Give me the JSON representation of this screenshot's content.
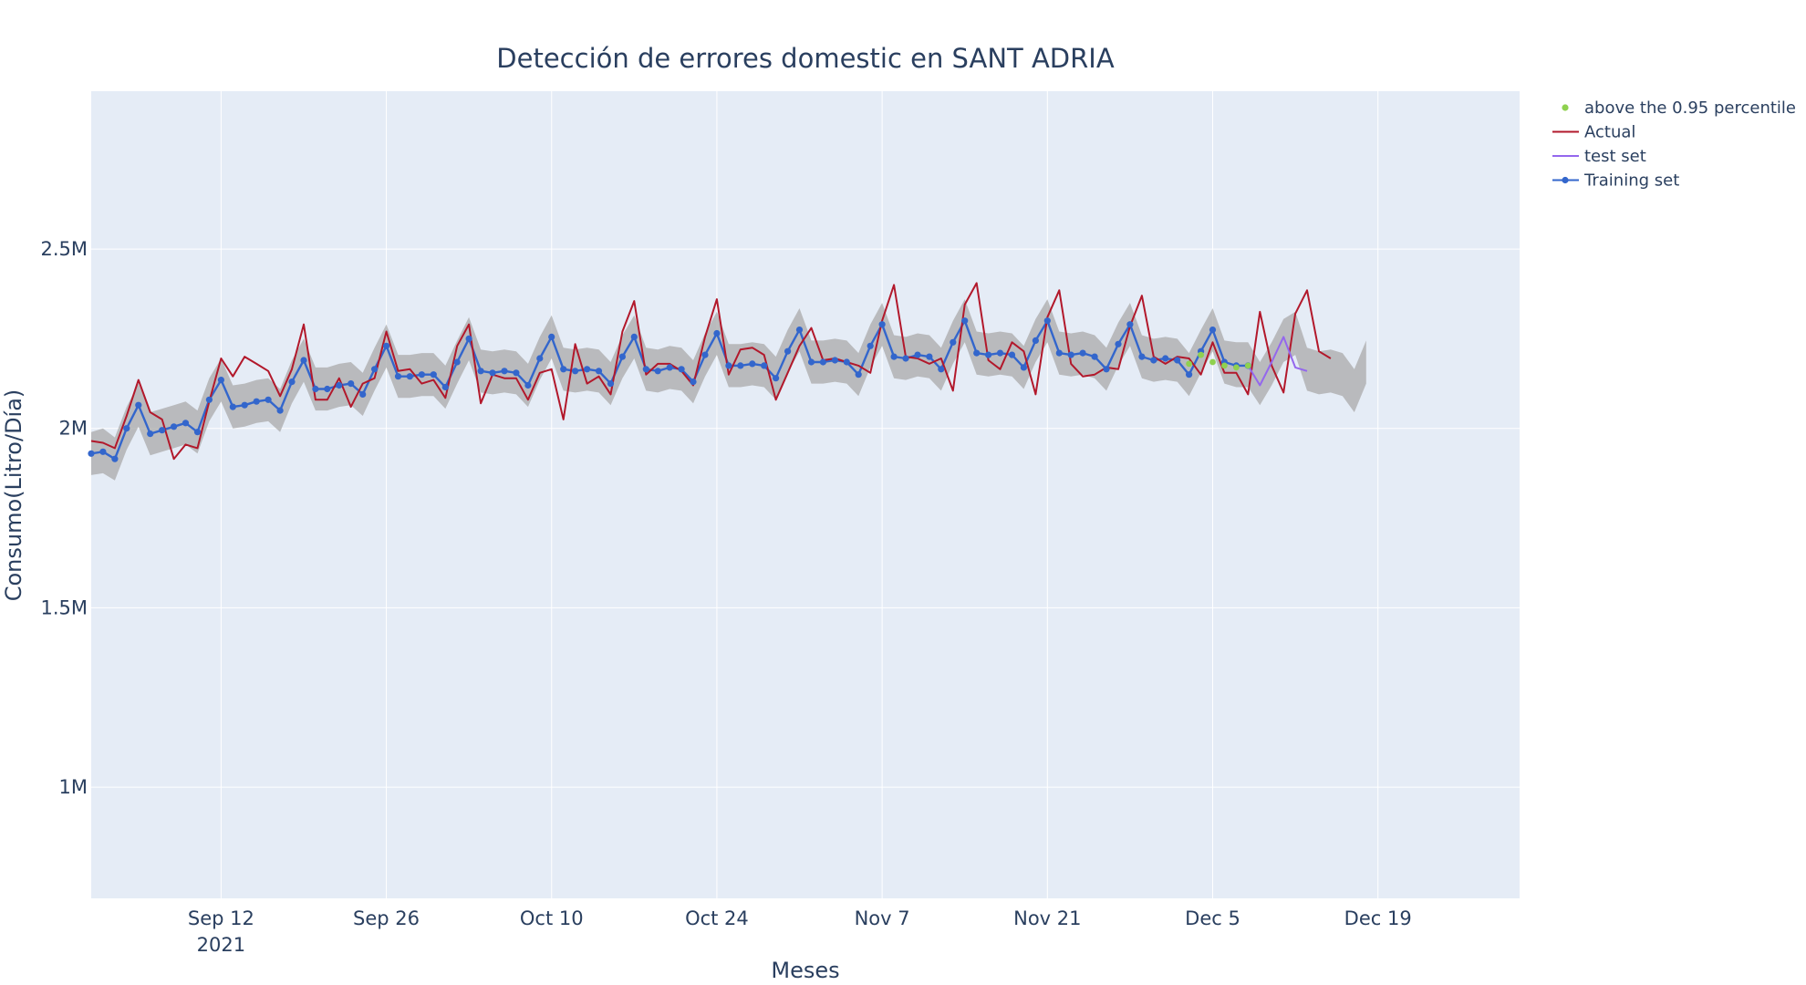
{
  "chart_data": {
    "type": "line",
    "title": "Detección de errores domestic en SANT ADRIA",
    "xlabel": "Meses",
    "ylabel": "Consumo(Litro/Día)",
    "x_start": "2021-09-01",
    "x_ticks": [
      {
        "label": "Sep 12",
        "sublabel": "2021"
      },
      {
        "label": "Sep 26",
        "sublabel": ""
      },
      {
        "label": "Oct 10",
        "sublabel": ""
      },
      {
        "label": "Oct 24",
        "sublabel": ""
      },
      {
        "label": "Nov 7",
        "sublabel": ""
      },
      {
        "label": "Nov 21",
        "sublabel": ""
      },
      {
        "label": "Dec 5",
        "sublabel": ""
      },
      {
        "label": "Dec 19",
        "sublabel": ""
      }
    ],
    "x_tick_dates": [
      "2021-09-12",
      "2021-09-26",
      "2021-10-10",
      "2021-10-24",
      "2021-11-07",
      "2021-11-21",
      "2021-12-05",
      "2021-12-19"
    ],
    "xlim": [
      "2021-09-01",
      "2021-12-31"
    ],
    "y_ticks": [
      {
        "value": 1000000,
        "label": "1M"
      },
      {
        "value": 1500000,
        "label": "1.5M"
      },
      {
        "value": 2000000,
        "label": "2M"
      },
      {
        "value": 2500000,
        "label": "2.5M"
      }
    ],
    "ylim": [
      690000,
      2940000
    ],
    "grid": true,
    "legend_position": "top-right",
    "colors": {
      "plot_bg": "#e5ecf6",
      "grid": "#ffffff",
      "band": "#a9a9a9",
      "actual": "#b2182b",
      "test": "#9467ed",
      "training": "#3366cc",
      "anomaly": "#8fd14f",
      "text": "#2a3f5f"
    },
    "legend": [
      {
        "name": "above the 0.95 percentile",
        "kind": "marker",
        "color_key": "anomaly"
      },
      {
        "name": "Actual",
        "kind": "line",
        "color_key": "actual"
      },
      {
        "name": "test set",
        "kind": "line",
        "color_key": "test"
      },
      {
        "name": "Training set",
        "kind": "line-marker",
        "color_key": "training"
      }
    ],
    "series": [
      {
        "name": "Actual",
        "start": "2021-09-01",
        "values": [
          1965000,
          1960000,
          1945000,
          2035000,
          2135000,
          2045000,
          2025000,
          1915000,
          1955000,
          1945000,
          2075000,
          2195000,
          2145000,
          2200000,
          2180000,
          2160000,
          2090000,
          2165000,
          2290000,
          2080000,
          2080000,
          2140000,
          2060000,
          2125000,
          2140000,
          2270000,
          2160000,
          2165000,
          2125000,
          2135000,
          2085000,
          2230000,
          2290000,
          2070000,
          2150000,
          2140000,
          2140000,
          2080000,
          2155000,
          2165000,
          2025000,
          2235000,
          2125000,
          2145000,
          2095000,
          2270000,
          2355000,
          2150000,
          2180000,
          2180000,
          2160000,
          2120000,
          2255000,
          2360000,
          2150000,
          2220000,
          2225000,
          2205000,
          2080000,
          2155000,
          2230000,
          2280000,
          2190000,
          2195000,
          2185000,
          2175000,
          2155000,
          2300000,
          2400000,
          2200000,
          2195000,
          2180000,
          2195000,
          2105000,
          2345000,
          2405000,
          2190000,
          2165000,
          2240000,
          2215000,
          2095000,
          2310000,
          2385000,
          2180000,
          2145000,
          2150000,
          2170000,
          2165000,
          2285000,
          2370000,
          2200000,
          2180000,
          2200000,
          2195000,
          2150000,
          2240000,
          2155000,
          2155000,
          2095000,
          2325000,
          2175000,
          2100000,
          2320000,
          2385000,
          2215000,
          2195000
        ]
      },
      {
        "name": "test set",
        "start": "2021-12-08",
        "values": [
          2175000,
          2120000,
          2185000,
          2255000,
          2170000,
          2160000
        ]
      },
      {
        "name": "Training set",
        "start": "2021-09-01",
        "values": [
          1930000,
          1935000,
          1915000,
          2000000,
          2065000,
          1985000,
          1995000,
          2005000,
          2015000,
          1990000,
          2080000,
          2135000,
          2060000,
          2065000,
          2075000,
          2080000,
          2050000,
          2130000,
          2190000,
          2110000,
          2110000,
          2120000,
          2125000,
          2095000,
          2165000,
          2230000,
          2145000,
          2145000,
          2150000,
          2150000,
          2115000,
          2185000,
          2250000,
          2160000,
          2155000,
          2160000,
          2155000,
          2120000,
          2195000,
          2255000,
          2165000,
          2160000,
          2165000,
          2160000,
          2125000,
          2200000,
          2255000,
          2165000,
          2160000,
          2170000,
          2165000,
          2130000,
          2205000,
          2265000,
          2175000,
          2175000,
          2180000,
          2175000,
          2140000,
          2215000,
          2275000,
          2185000,
          2185000,
          2190000,
          2185000,
          2150000,
          2230000,
          2290000,
          2200000,
          2195000,
          2205000,
          2200000,
          2165000,
          2240000,
          2300000,
          2210000,
          2205000,
          2210000,
          2205000,
          2170000,
          2245000,
          2300000,
          2210000,
          2205000,
          2210000,
          2200000,
          2165000,
          2235000,
          2290000,
          2200000,
          2190000,
          2195000,
          2190000,
          2150000,
          2215000,
          2275000,
          2185000,
          2175000,
          2175000
        ]
      },
      {
        "name": "above the 0.95 percentile",
        "start": "2021-12-03",
        "values": [
          2180000,
          2205000,
          2185000,
          2175000,
          2170000,
          2175000
        ]
      }
    ],
    "band": {
      "start": "2021-09-01",
      "upper": [
        1990000,
        2000000,
        1975000,
        2060000,
        2125000,
        2045000,
        2055000,
        2065000,
        2075000,
        2050000,
        2140000,
        2195000,
        2120000,
        2125000,
        2135000,
        2140000,
        2110000,
        2190000,
        2250000,
        2170000,
        2170000,
        2180000,
        2185000,
        2155000,
        2225000,
        2290000,
        2205000,
        2205000,
        2210000,
        2210000,
        2175000,
        2245000,
        2310000,
        2220000,
        2215000,
        2220000,
        2215000,
        2180000,
        2255000,
        2315000,
        2225000,
        2220000,
        2225000,
        2220000,
        2185000,
        2260000,
        2315000,
        2225000,
        2220000,
        2230000,
        2225000,
        2190000,
        2265000,
        2325000,
        2235000,
        2235000,
        2240000,
        2235000,
        2200000,
        2275000,
        2335000,
        2245000,
        2245000,
        2250000,
        2245000,
        2210000,
        2290000,
        2350000,
        2260000,
        2255000,
        2265000,
        2260000,
        2225000,
        2300000,
        2360000,
        2270000,
        2265000,
        2270000,
        2265000,
        2230000,
        2305000,
        2360000,
        2270000,
        2265000,
        2270000,
        2260000,
        2225000,
        2295000,
        2350000,
        2260000,
        2250000,
        2255000,
        2250000,
        2210000,
        2275000,
        2335000,
        2245000,
        2240000,
        2240000,
        2185000,
        2240000,
        2305000,
        2325000,
        2225000,
        2215000,
        2220000,
        2210000,
        2165000,
        2245000
      ],
      "lower": [
        1870000,
        1875000,
        1855000,
        1940000,
        2005000,
        1925000,
        1935000,
        1945000,
        1955000,
        1930000,
        2020000,
        2075000,
        2000000,
        2005000,
        2015000,
        2020000,
        1990000,
        2070000,
        2130000,
        2050000,
        2050000,
        2060000,
        2065000,
        2035000,
        2105000,
        2170000,
        2085000,
        2085000,
        2090000,
        2090000,
        2055000,
        2125000,
        2190000,
        2100000,
        2095000,
        2100000,
        2095000,
        2060000,
        2135000,
        2195000,
        2105000,
        2100000,
        2105000,
        2100000,
        2065000,
        2140000,
        2195000,
        2105000,
        2100000,
        2110000,
        2105000,
        2070000,
        2145000,
        2205000,
        2115000,
        2115000,
        2120000,
        2115000,
        2080000,
        2155000,
        2215000,
        2125000,
        2125000,
        2130000,
        2125000,
        2090000,
        2170000,
        2230000,
        2140000,
        2135000,
        2145000,
        2140000,
        2105000,
        2180000,
        2240000,
        2150000,
        2145000,
        2150000,
        2145000,
        2110000,
        2185000,
        2240000,
        2150000,
        2145000,
        2150000,
        2140000,
        2105000,
        2175000,
        2230000,
        2140000,
        2130000,
        2135000,
        2130000,
        2090000,
        2155000,
        2215000,
        2125000,
        2115000,
        2115000,
        2065000,
        2120000,
        2185000,
        2205000,
        2105000,
        2095000,
        2100000,
        2090000,
        2045000,
        2125000
      ]
    }
  }
}
